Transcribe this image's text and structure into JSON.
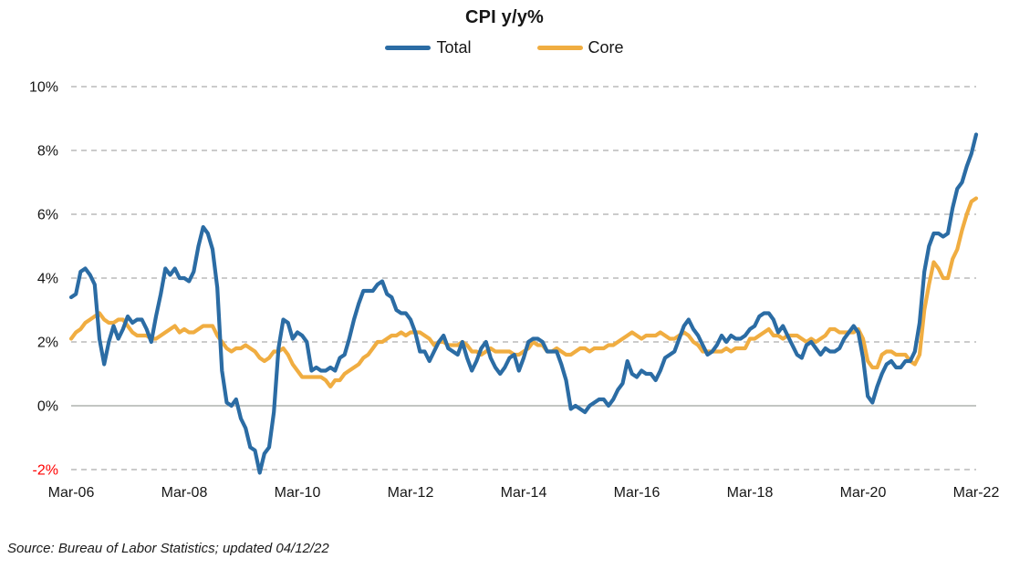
{
  "header": {
    "title": "CPI y/y%"
  },
  "legend": {
    "items": [
      {
        "label": "Total",
        "color": "#2B6CA4"
      },
      {
        "label": "Core",
        "color": "#F0AD41"
      }
    ]
  },
  "footer": {
    "source_note": "Source: Bureau of Labor Statistics; updated 04/12/22"
  },
  "chart_data": {
    "type": "line",
    "title": "CPI y/y%",
    "x_start": "Mar-2006",
    "x_end": "Mar-2022",
    "x_frequency": "monthly",
    "x_tick_labels": [
      "Mar-06",
      "Mar-08",
      "Mar-10",
      "Mar-12",
      "Mar-14",
      "Mar-16",
      "Mar-18",
      "Mar-20",
      "Mar-22"
    ],
    "x_tick_interval_months": 24,
    "y_ticks": [
      10,
      8,
      6,
      4,
      2,
      0,
      -2
    ],
    "y_tick_suffix": "%",
    "ylim": [
      -2,
      10
    ],
    "grid": "horizontal dashed, solid line at 0",
    "legend_position": "top center",
    "colors": {
      "grid": "#ACACAC",
      "zero_line": "#9FA49F",
      "tick_text": "#161616",
      "negative_tick": "#FF0000"
    },
    "series": [
      {
        "name": "Total",
        "color": "#2B6CA4",
        "values": [
          3.4,
          3.5,
          4.2,
          4.3,
          4.1,
          3.8,
          2.1,
          1.3,
          2.0,
          2.5,
          2.1,
          2.4,
          2.8,
          2.6,
          2.7,
          2.7,
          2.4,
          2.0,
          2.8,
          3.5,
          4.3,
          4.1,
          4.3,
          4.0,
          4.0,
          3.9,
          4.2,
          5.0,
          5.6,
          5.4,
          4.9,
          3.7,
          1.1,
          0.1,
          0.0,
          0.2,
          -0.4,
          -0.7,
          -1.3,
          -1.4,
          -2.1,
          -1.5,
          -1.3,
          -0.2,
          1.8,
          2.7,
          2.6,
          2.1,
          2.3,
          2.2,
          2.0,
          1.1,
          1.2,
          1.1,
          1.1,
          1.2,
          1.1,
          1.5,
          1.6,
          2.1,
          2.7,
          3.2,
          3.6,
          3.6,
          3.6,
          3.8,
          3.9,
          3.5,
          3.4,
          3.0,
          2.9,
          2.9,
          2.7,
          2.3,
          1.7,
          1.7,
          1.4,
          1.7,
          2.0,
          2.2,
          1.8,
          1.7,
          1.6,
          2.0,
          1.5,
          1.1,
          1.4,
          1.8,
          2.0,
          1.5,
          1.2,
          1.0,
          1.2,
          1.5,
          1.6,
          1.1,
          1.5,
          2.0,
          2.1,
          2.1,
          2.0,
          1.7,
          1.7,
          1.7,
          1.3,
          0.8,
          -0.1,
          0.0,
          -0.1,
          -0.2,
          0.0,
          0.1,
          0.2,
          0.2,
          0.0,
          0.2,
          0.5,
          0.7,
          1.4,
          1.0,
          0.9,
          1.1,
          1.0,
          1.0,
          0.8,
          1.1,
          1.5,
          1.6,
          1.7,
          2.1,
          2.5,
          2.7,
          2.4,
          2.2,
          1.9,
          1.6,
          1.7,
          1.9,
          2.2,
          2.0,
          2.2,
          2.1,
          2.1,
          2.2,
          2.4,
          2.5,
          2.8,
          2.9,
          2.9,
          2.7,
          2.3,
          2.5,
          2.2,
          1.9,
          1.6,
          1.5,
          1.9,
          2.0,
          1.8,
          1.6,
          1.8,
          1.7,
          1.7,
          1.8,
          2.1,
          2.3,
          2.5,
          2.3,
          1.5,
          0.3,
          0.1,
          0.6,
          1.0,
          1.3,
          1.4,
          1.2,
          1.2,
          1.4,
          1.4,
          1.7,
          2.6,
          4.2,
          5.0,
          5.4,
          5.4,
          5.3,
          5.4,
          6.2,
          6.8,
          7.0,
          7.5,
          7.9,
          8.5
        ]
      },
      {
        "name": "Core",
        "color": "#F0AD41",
        "values": [
          2.1,
          2.3,
          2.4,
          2.6,
          2.7,
          2.8,
          2.9,
          2.7,
          2.6,
          2.6,
          2.7,
          2.7,
          2.5,
          2.3,
          2.2,
          2.2,
          2.2,
          2.1,
          2.1,
          2.2,
          2.3,
          2.4,
          2.5,
          2.3,
          2.4,
          2.3,
          2.3,
          2.4,
          2.5,
          2.5,
          2.5,
          2.2,
          2.0,
          1.8,
          1.7,
          1.8,
          1.8,
          1.9,
          1.8,
          1.7,
          1.5,
          1.4,
          1.5,
          1.7,
          1.7,
          1.8,
          1.6,
          1.3,
          1.1,
          0.9,
          0.9,
          0.9,
          0.9,
          0.9,
          0.8,
          0.6,
          0.8,
          0.8,
          1.0,
          1.1,
          1.2,
          1.3,
          1.5,
          1.6,
          1.8,
          2.0,
          2.0,
          2.1,
          2.2,
          2.2,
          2.3,
          2.2,
          2.3,
          2.3,
          2.3,
          2.2,
          2.1,
          1.9,
          2.0,
          2.0,
          1.9,
          1.9,
          1.9,
          2.0,
          1.9,
          1.7,
          1.7,
          1.6,
          1.7,
          1.8,
          1.7,
          1.7,
          1.7,
          1.7,
          1.6,
          1.6,
          1.7,
          1.8,
          2.0,
          1.9,
          1.9,
          1.7,
          1.7,
          1.8,
          1.7,
          1.6,
          1.6,
          1.7,
          1.8,
          1.8,
          1.7,
          1.8,
          1.8,
          1.8,
          1.9,
          1.9,
          2.0,
          2.1,
          2.2,
          2.3,
          2.2,
          2.1,
          2.2,
          2.2,
          2.2,
          2.3,
          2.2,
          2.1,
          2.1,
          2.2,
          2.3,
          2.2,
          2.0,
          1.9,
          1.7,
          1.7,
          1.7,
          1.7,
          1.7,
          1.8,
          1.7,
          1.8,
          1.8,
          1.8,
          2.1,
          2.1,
          2.2,
          2.3,
          2.4,
          2.2,
          2.2,
          2.1,
          2.2,
          2.2,
          2.2,
          2.1,
          2.0,
          2.1,
          2.0,
          2.1,
          2.2,
          2.4,
          2.4,
          2.3,
          2.3,
          2.3,
          2.3,
          2.4,
          2.1,
          1.4,
          1.2,
          1.2,
          1.6,
          1.7,
          1.7,
          1.6,
          1.6,
          1.6,
          1.4,
          1.3,
          1.6,
          3.0,
          3.8,
          4.5,
          4.3,
          4.0,
          4.0,
          4.6,
          4.9,
          5.5,
          6.0,
          6.4,
          6.5
        ]
      }
    ]
  }
}
